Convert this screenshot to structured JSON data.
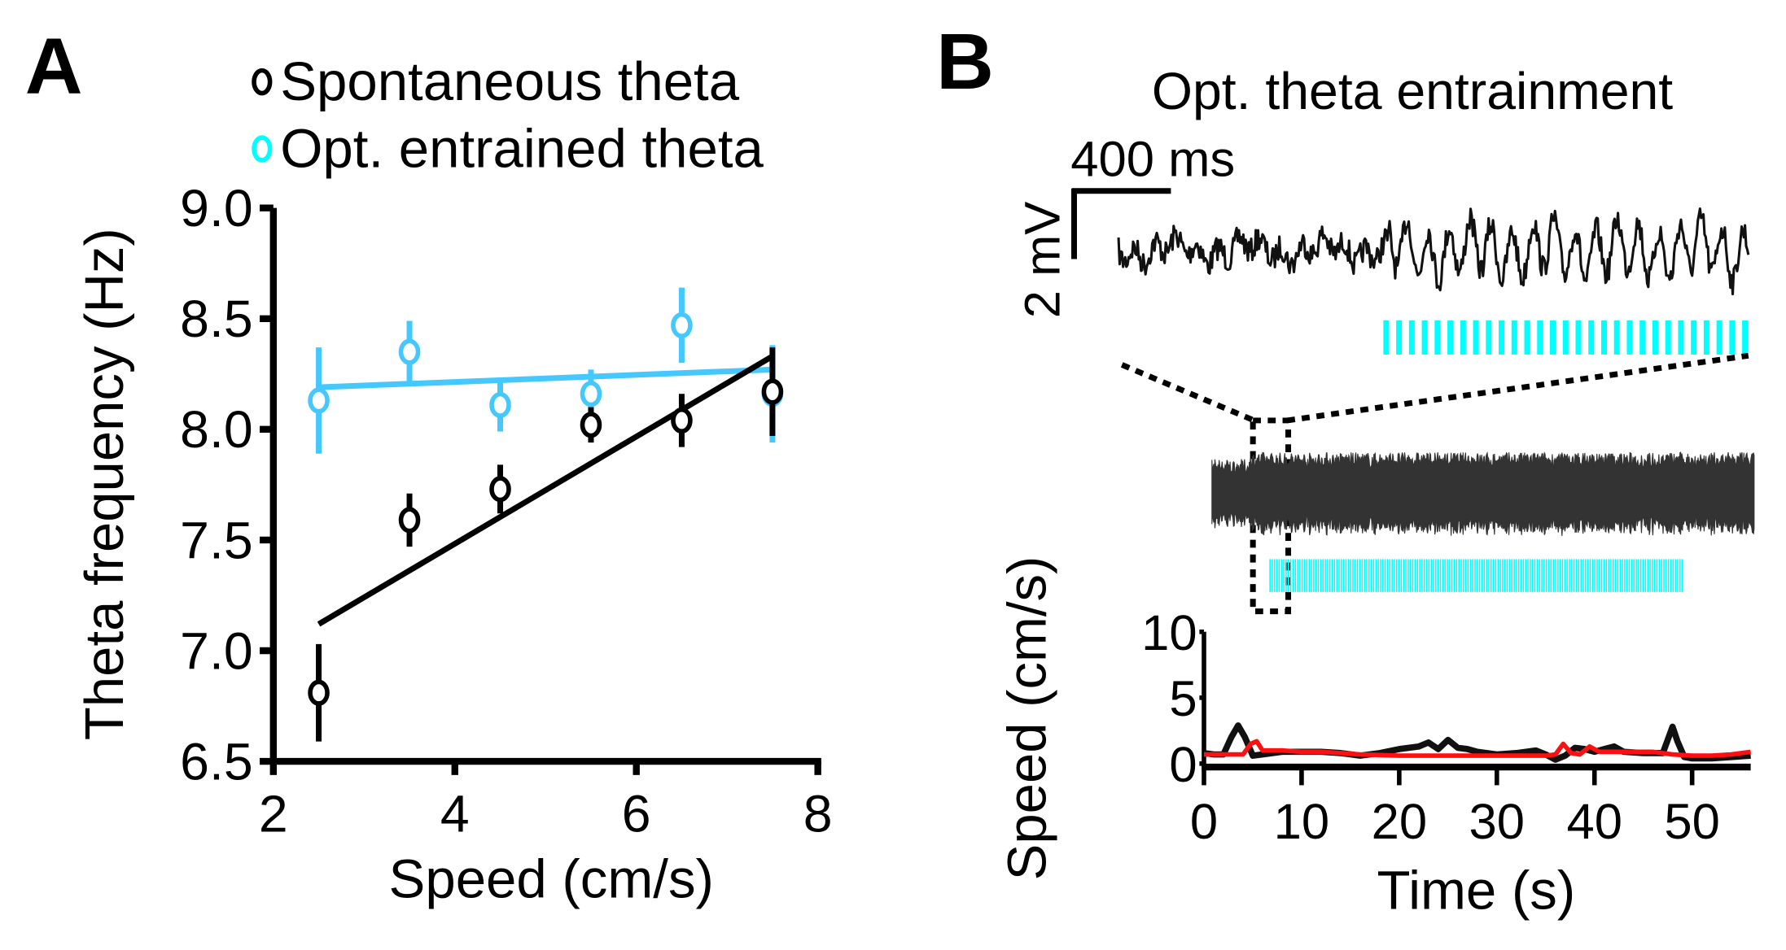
{
  "panels": {
    "a": {
      "letter": "A"
    },
    "b": {
      "letter": "B",
      "title": "Opt. theta entrainment"
    }
  },
  "legend": {
    "items": [
      {
        "label": "Spontaneous theta",
        "color": "#000000"
      },
      {
        "label": "Opt. entrained theta",
        "color": "#00ffff"
      }
    ]
  },
  "scalebar": {
    "time_label": "400 ms",
    "voltage_label": "2 mV"
  },
  "colors": {
    "spontaneous": "#000000",
    "entrained": "#45c8ff",
    "light_pulse": "#00ffff",
    "lfp_trace": "#111111",
    "speed_spontaneous": "#111111",
    "speed_entrained": "#ff1010"
  },
  "chart_data": [
    {
      "type": "scatter",
      "title": "",
      "xlabel": "Speed (cm/s)",
      "ylabel": "Theta frequency (Hz)",
      "xlim": [
        2,
        8
      ],
      "ylim": [
        6.5,
        9.0
      ],
      "x_ticks": [
        "2",
        "4",
        "6",
        "8"
      ],
      "y_ticks": [
        "6.5",
        "7.0",
        "7.5",
        "8.0",
        "8.5",
        "9.0"
      ],
      "grid": false,
      "legend_position": "top",
      "series": [
        {
          "name": "Spontaneous theta",
          "x": [
            2.5,
            3.5,
            4.5,
            5.5,
            6.5,
            7.5
          ],
          "y": [
            6.81,
            7.59,
            7.73,
            8.02,
            8.04,
            8.17
          ],
          "error": [
            0.22,
            0.12,
            0.11,
            0.08,
            0.12,
            0.2
          ],
          "fit": {
            "x": [
              2.5,
              7.5
            ],
            "y": [
              7.12,
              8.33
            ]
          }
        },
        {
          "name": "Opt. entrained theta",
          "x": [
            2.5,
            3.5,
            4.5,
            5.5,
            6.5,
            7.5
          ],
          "y": [
            8.13,
            8.35,
            8.11,
            8.16,
            8.47,
            8.16
          ],
          "error": [
            0.24,
            0.14,
            0.12,
            0.11,
            0.17,
            0.22
          ],
          "fit": {
            "x": [
              2.5,
              7.5
            ],
            "y": [
              8.19,
              8.27
            ]
          }
        }
      ]
    },
    {
      "type": "line",
      "title": "Opt. theta entrainment",
      "xlabel": "Time (s)",
      "ylabel": "Speed (cm/s)",
      "xlim": [
        0,
        56
      ],
      "ylim": [
        0,
        10
      ],
      "x_ticks": [
        "0",
        "10",
        "20",
        "30",
        "40",
        "50"
      ],
      "y_ticks": [
        "0",
        "5",
        "10"
      ],
      "grid": false,
      "light_pulses_zoomed_count": 29,
      "light_stimulation_window_s": [
        3.2,
        49
      ],
      "series": [
        {
          "name": "Spontaneous theta speed",
          "x": [
            0,
            1,
            2,
            2.8,
            3.5,
            4.2,
            5,
            6,
            8,
            10,
            12,
            14,
            16,
            18,
            20,
            22,
            23,
            24,
            25,
            26,
            27,
            28,
            30,
            32,
            34,
            35,
            36,
            37,
            38,
            39,
            40,
            41,
            42,
            43,
            45,
            47,
            48,
            48.5,
            49.2,
            50,
            52,
            54,
            56
          ],
          "y": [
            0.8,
            0.7,
            0.7,
            2.0,
            2.9,
            2.0,
            0.6,
            0.7,
            0.9,
            0.9,
            0.9,
            0.8,
            0.6,
            0.8,
            1.1,
            1.3,
            1.6,
            1.1,
            1.8,
            1.2,
            1.1,
            0.9,
            0.7,
            0.8,
            1.0,
            0.7,
            0.3,
            0.6,
            1.2,
            1.1,
            0.9,
            1.1,
            1.3,
            0.9,
            0.8,
            0.8,
            2.8,
            1.7,
            0.5,
            0.4,
            0.4,
            0.5,
            0.6
          ]
        },
        {
          "name": "Opt. entrained theta speed",
          "x": [
            0,
            2,
            4,
            4.8,
            5.4,
            6,
            8,
            10,
            12,
            14,
            16,
            20,
            24,
            28,
            32,
            35,
            36,
            36.8,
            37.6,
            38.5,
            39.5,
            40.5,
            42,
            46,
            48,
            50,
            52,
            54,
            56
          ],
          "y": [
            0.7,
            0.7,
            0.7,
            1.5,
            1.7,
            1.0,
            1.0,
            0.9,
            0.9,
            0.8,
            0.7,
            0.6,
            0.6,
            0.6,
            0.6,
            0.6,
            0.7,
            1.5,
            0.8,
            0.7,
            1.3,
            0.9,
            0.9,
            0.9,
            0.7,
            0.6,
            0.6,
            0.7,
            0.9
          ]
        }
      ]
    }
  ]
}
